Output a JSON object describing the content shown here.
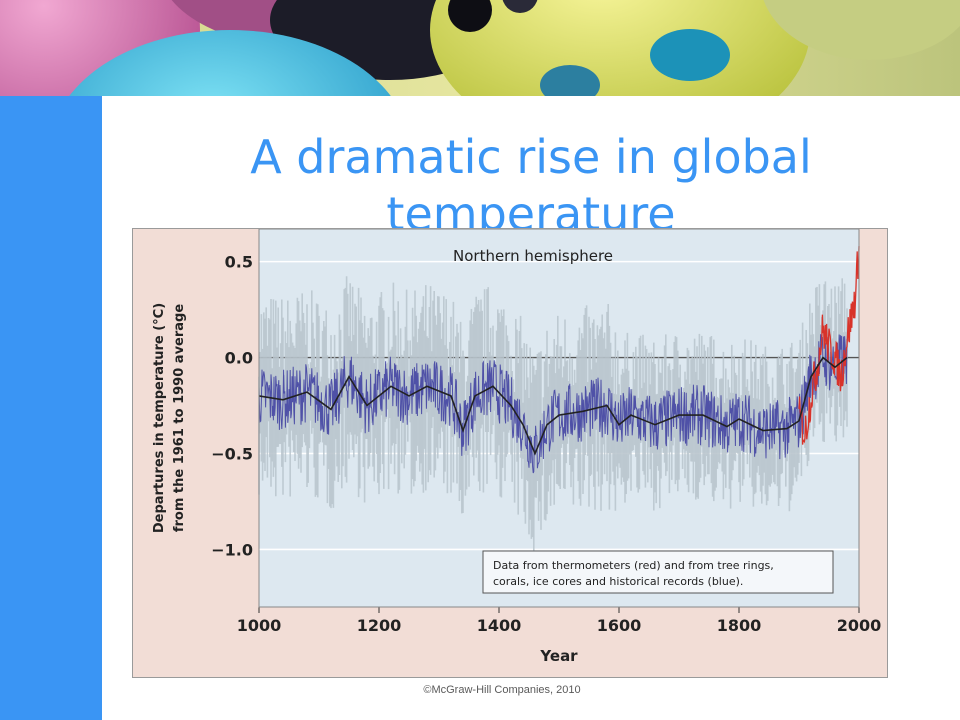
{
  "slide": {
    "title_line1": "A dramatic rise in global",
    "title_line2": "temperature",
    "credit": "©McGraw-Hill Companies, 2010"
  },
  "colors": {
    "accent_blue": "#3a95f4",
    "plot_background": "#dde8f0",
    "frame_background": "#f2ddd6",
    "proxy_blue": "#3c3ca0",
    "thermometer_red": "#d8332a",
    "uncertainty_gray": "#b9c5cd"
  },
  "chart_data": {
    "type": "line",
    "title": "Northern hemisphere",
    "xlabel": "Year",
    "ylabel_line1": "Departures in temperature (°C)",
    "ylabel_line2": "from the 1961 to 1990 average",
    "xlim": [
      1000,
      2000
    ],
    "ylim": [
      -1.3,
      0.67
    ],
    "x_ticks": [
      "1000",
      "1200",
      "1400",
      "1600",
      "1800",
      "2000"
    ],
    "y_ticks": [
      "0.5",
      "0.0",
      "−0.5",
      "−1.0"
    ],
    "y_tick_values": [
      0.5,
      0.0,
      -0.5,
      -1.0
    ],
    "grid": true,
    "legend_text_line1": "Data from thermometers (red) and from tree rings,",
    "legend_text_line2": "corals, ice cores and historical records (blue).",
    "legend_position": "bottom-right",
    "series": [
      {
        "role": "smoothed proxy reconstruction (blue data)",
        "x": [
          1000,
          1040,
          1080,
          1120,
          1150,
          1180,
          1220,
          1250,
          1280,
          1320,
          1340,
          1360,
          1390,
          1420,
          1440,
          1460,
          1480,
          1500,
          1540,
          1580,
          1600,
          1620,
          1660,
          1700,
          1740,
          1780,
          1800,
          1840,
          1880,
          1900,
          1920,
          1940,
          1960,
          1980
        ],
        "values": [
          -0.2,
          -0.22,
          -0.18,
          -0.27,
          -0.1,
          -0.25,
          -0.15,
          -0.2,
          -0.15,
          -0.2,
          -0.38,
          -0.2,
          -0.15,
          -0.25,
          -0.35,
          -0.5,
          -0.35,
          -0.3,
          -0.28,
          -0.25,
          -0.35,
          -0.3,
          -0.35,
          -0.3,
          -0.3,
          -0.36,
          -0.32,
          -0.38,
          -0.37,
          -0.33,
          -0.1,
          0.0,
          -0.05,
          0.0
        ]
      },
      {
        "role": "thermometer record (red data)",
        "x": [
          1900,
          1910,
          1920,
          1930,
          1940,
          1950,
          1960,
          1970,
          1980,
          1990,
          1995,
          2000
        ],
        "values": [
          -0.3,
          -0.4,
          -0.2,
          -0.05,
          0.15,
          0.05,
          0.0,
          -0.1,
          0.1,
          0.25,
          0.35,
          0.6
        ]
      }
    ]
  }
}
